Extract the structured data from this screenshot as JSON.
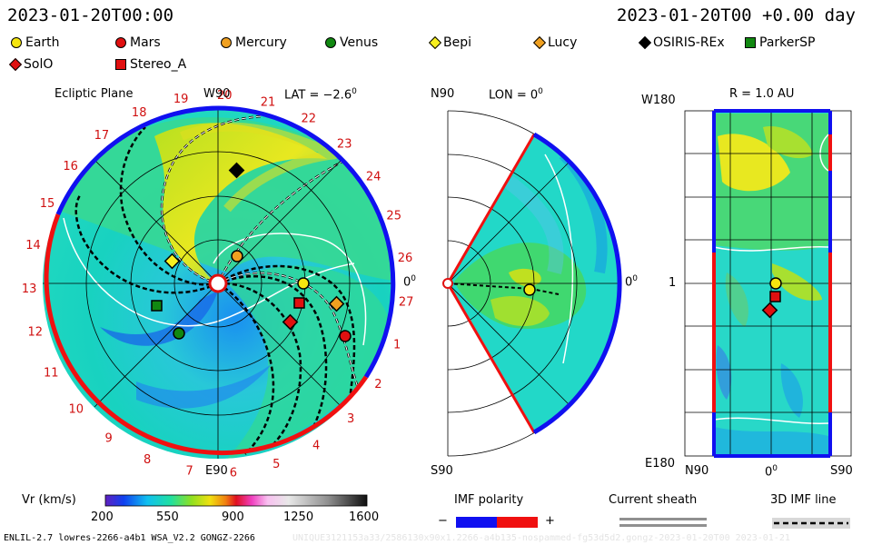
{
  "header": {
    "date_left": "2023-01-20T00:00",
    "date_right": "2023-01-20T00 +0.00 day"
  },
  "legend": [
    {
      "label": "Earth",
      "shape": "circle",
      "color": "#f5e50f"
    },
    {
      "label": "Mars",
      "shape": "circle",
      "color": "#e01010"
    },
    {
      "label": "Mercury",
      "shape": "circle",
      "color": "#f0a020"
    },
    {
      "label": "Venus",
      "shape": "circle",
      "color": "#118811"
    },
    {
      "label": "Bepi",
      "shape": "diamond",
      "color": "#f8f020"
    },
    {
      "label": "Lucy",
      "shape": "diamond",
      "color": "#f0a020"
    },
    {
      "label": "OSIRIS-REx",
      "shape": "diamond",
      "color": "#000000"
    },
    {
      "label": "ParkerSP",
      "shape": "square",
      "color": "#118811"
    },
    {
      "label": "SolO",
      "shape": "diamond",
      "color": "#e01010"
    },
    {
      "label": "Stereo_A",
      "shape": "square",
      "color": "#e01010"
    }
  ],
  "panels": {
    "ecliptic": {
      "title": "Ecliptic Plane",
      "top": "W90",
      "bottom": "E90",
      "right": "0",
      "lat": "LAT = −2.6",
      "deg": "0",
      "carrington": [
        "20",
        "21",
        "22",
        "23",
        "24",
        "25",
        "26",
        "27",
        "1",
        "2",
        "3",
        "4",
        "5",
        "6",
        "7",
        "8",
        "9",
        "10",
        "11",
        "12",
        "13",
        "14",
        "15",
        "16",
        "17",
        "18",
        "19"
      ]
    },
    "meridional": {
      "top": "N90",
      "bottom": "S90",
      "right": "0",
      "lon": "LON = 0",
      "deg": "0"
    },
    "radial": {
      "title": "R = 1.0 AU",
      "top_left": "W180",
      "bottom_left": "E180",
      "mid_left": "1",
      "x_left": "N90",
      "x_mid": "0",
      "x_right": "S90",
      "deg": "0"
    }
  },
  "colorbar": {
    "label": "Vr (km/s)",
    "ticks": [
      "200",
      "550",
      "900",
      "1250",
      "1600"
    ]
  },
  "imf_polarity": {
    "title": "IMF polarity",
    "minus": "−",
    "plus": "+",
    "neg_color": "#1010f0",
    "pos_color": "#f01010"
  },
  "current_sheath": {
    "title": "Current sheath"
  },
  "imf_line": {
    "title": "3D IMF line"
  },
  "footer": {
    "model": "ENLIL-2.7 lowres-2266-a4b1 WSA_V2.2 GONGZ-2266",
    "watermark": "UNIQUE3121153a33/2586130x90x1.2266-a4b135-nospammed-fg53d5d2.gongz-2023-01-20T00 2023-01-21"
  }
}
